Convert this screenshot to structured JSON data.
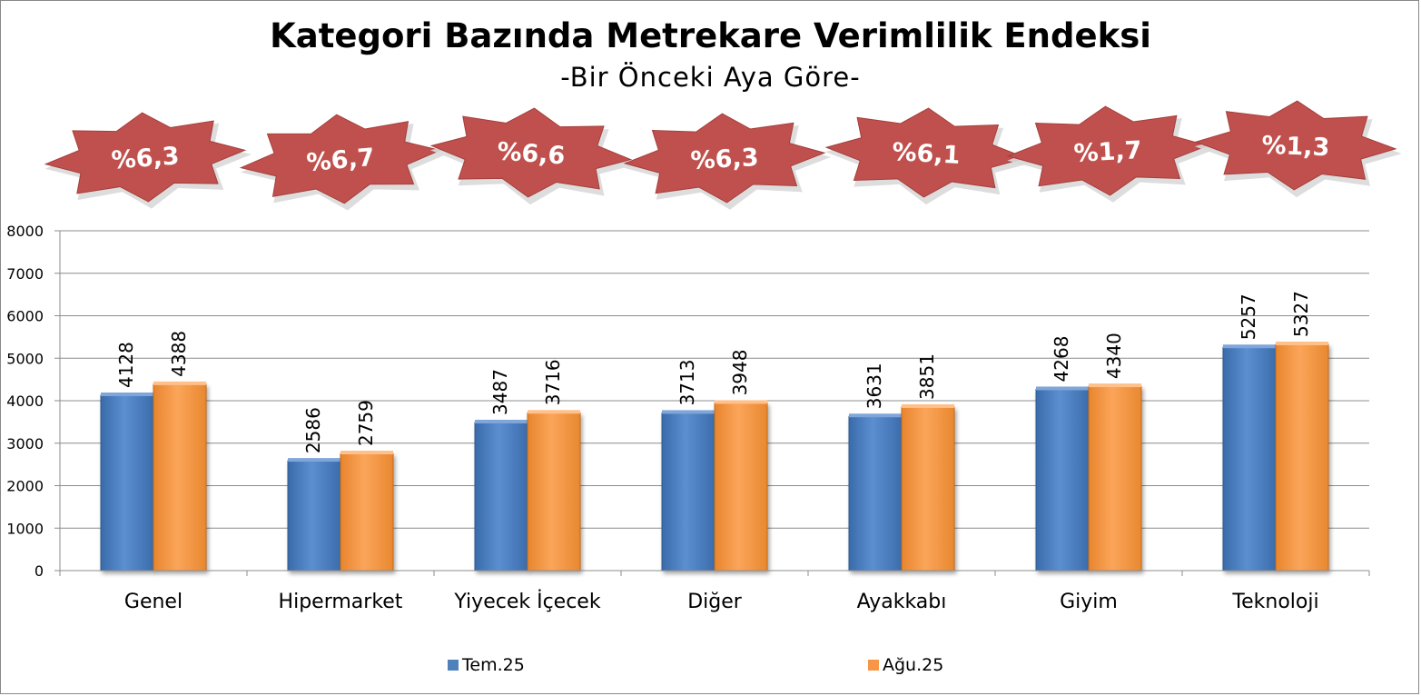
{
  "chart_data": {
    "type": "bar",
    "title": "Kategori Bazında Metrekare Verimlilik Endeksi",
    "subtitle": "-Bir Önceki Aya Göre-",
    "categories": [
      "Genel",
      "Hipermarket",
      "Yiyecek İçecek",
      "Diğer",
      "Ayakkabı",
      "Giyim",
      "Teknoloji"
    ],
    "series": [
      {
        "name": "Tem.25",
        "values": [
          4128,
          2586,
          3487,
          3713,
          3631,
          4268,
          5257
        ],
        "color": "#4F81BD"
      },
      {
        "name": "Ağu.25",
        "values": [
          4388,
          2759,
          3716,
          3948,
          3851,
          4340,
          5327
        ],
        "color": "#F79646"
      }
    ],
    "change_badges": [
      "%6,3",
      "%6,7",
      "%6,6",
      "%6,3",
      "%6,1",
      "%1,7",
      "%1,3"
    ],
    "badge_color": "#C0504D",
    "ylim": [
      0,
      8000
    ],
    "yticks": [
      "0",
      "1000",
      "2000",
      "3000",
      "4000",
      "5000",
      "6000",
      "7000",
      "8000"
    ],
    "grid": true,
    "legend_position": "bottom"
  }
}
